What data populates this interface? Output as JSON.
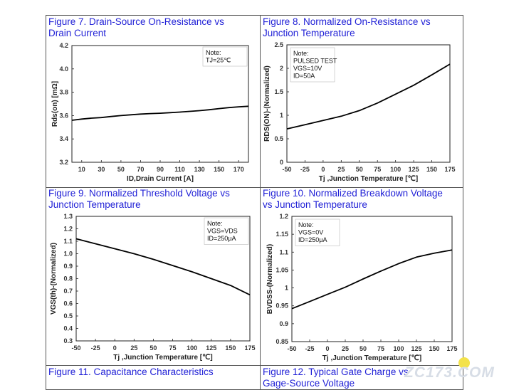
{
  "captions": [
    "Figure 7. Drain-Source On-Resistance vs\nDrain Current",
    "Figure 8. Normalized On-Resistance vs\nJunction Temperature",
    "Figure 9. Normalized Threshold Voltage vs\nJunction Temperature",
    "Figure 10. Normalized Breakdown Voltage\nvs Junction Temperature",
    "Figure 11. Capacitance Characteristics",
    "Figure 12. Typical Gate Charge vs\nGage-Source Voltage"
  ],
  "watermark": "ZC173.COM",
  "chart_data": [
    {
      "type": "line",
      "title": "Figure 7. Drain-Source On-Resistance vs Drain Current",
      "xlabel": "ID,Drain Current [A]",
      "ylabel": "Rds(on) [mΩ]",
      "xlim": [
        0,
        180
      ],
      "ylim": [
        3.2,
        4.2
      ],
      "xticks": [
        10,
        30,
        50,
        70,
        90,
        110,
        130,
        150,
        170
      ],
      "yticks": [
        3.2,
        3.4,
        3.6,
        3.8,
        4.0,
        4.2
      ],
      "ytick_decimals": 1,
      "note": [
        "Note:",
        "TJ=25℃"
      ],
      "note_pos": "top-right",
      "series": [
        {
          "x": [
            0,
            10,
            20,
            30,
            40,
            50,
            60,
            70,
            80,
            90,
            100,
            110,
            120,
            130,
            140,
            150,
            160,
            170,
            180
          ],
          "y": [
            3.56,
            3.57,
            3.578,
            3.583,
            3.592,
            3.6,
            3.607,
            3.613,
            3.617,
            3.62,
            3.625,
            3.63,
            3.636,
            3.642,
            3.65,
            3.66,
            3.668,
            3.675,
            3.68
          ]
        }
      ]
    },
    {
      "type": "line",
      "title": "Figure 8. Normalized On-Resistance vs Junction Temperature",
      "xlabel": "Tj ,Junction Temperature [℃]",
      "ylabel": "RDS(ON)-(Normalized)",
      "xlim": [
        -50,
        175
      ],
      "ylim": [
        0,
        2.5
      ],
      "xticks": [
        -50,
        -25,
        0,
        25,
        50,
        75,
        100,
        125,
        150,
        175
      ],
      "yticks": [
        0,
        0.5,
        1,
        1.5,
        2,
        2.5
      ],
      "ytick_decimals": -1,
      "note": [
        "Note:",
        "PULSED TEST",
        "VGS=10V",
        "ID=50A"
      ],
      "note_pos": "top-left",
      "series": [
        {
          "x": [
            -50,
            -25,
            0,
            25,
            50,
            75,
            100,
            125,
            150,
            175
          ],
          "y": [
            0.71,
            0.8,
            0.89,
            0.98,
            1.1,
            1.26,
            1.45,
            1.64,
            1.86,
            2.09
          ]
        }
      ]
    },
    {
      "type": "line",
      "title": "Figure 9. Normalized Threshold Voltage vs Junction Temperature",
      "xlabel": "Tj ,Junction Temperature [℃]",
      "ylabel": "VGS(th)-(Normalized)",
      "xlim": [
        -50,
        175
      ],
      "ylim": [
        0.3,
        1.3
      ],
      "xticks": [
        -50,
        -25,
        0,
        25,
        50,
        75,
        100,
        125,
        150,
        175
      ],
      "yticks": [
        0.3,
        0.4,
        0.5,
        0.6,
        0.7,
        0.8,
        0.9,
        1.0,
        1.1,
        1.2,
        1.3
      ],
      "ytick_decimals": 1,
      "note": [
        "Note:",
        "VGS=VDS",
        "ID=250μA"
      ],
      "note_pos": "top-right",
      "series": [
        {
          "x": [
            -50,
            -25,
            0,
            25,
            50,
            75,
            100,
            125,
            150,
            175
          ],
          "y": [
            1.12,
            1.08,
            1.04,
            1.0,
            0.955,
            0.905,
            0.855,
            0.8,
            0.745,
            0.67
          ]
        }
      ]
    },
    {
      "type": "line",
      "title": "Figure 10. Normalized Breakdown Voltage vs Junction Temperature",
      "xlabel": "Tj ,Junction Temperature [℃]",
      "ylabel": "BVDSS-(Normalized)",
      "xlim": [
        -50,
        175
      ],
      "ylim": [
        0.85,
        1.2
      ],
      "xticks": [
        -50,
        -25,
        0,
        25,
        50,
        75,
        100,
        125,
        150,
        175
      ],
      "yticks": [
        0.85,
        0.9,
        0.95,
        1,
        1.05,
        1.1,
        1.15,
        1.2
      ],
      "ytick_decimals": -1,
      "note": [
        "Note:",
        "VGS=0V",
        "ID=250μA"
      ],
      "note_pos": "top-left",
      "series": [
        {
          "x": [
            -50,
            -25,
            0,
            25,
            50,
            75,
            100,
            125,
            150,
            175
          ],
          "y": [
            0.942,
            0.962,
            0.982,
            1.002,
            1.025,
            1.047,
            1.068,
            1.086,
            1.097,
            1.106
          ]
        }
      ]
    }
  ]
}
